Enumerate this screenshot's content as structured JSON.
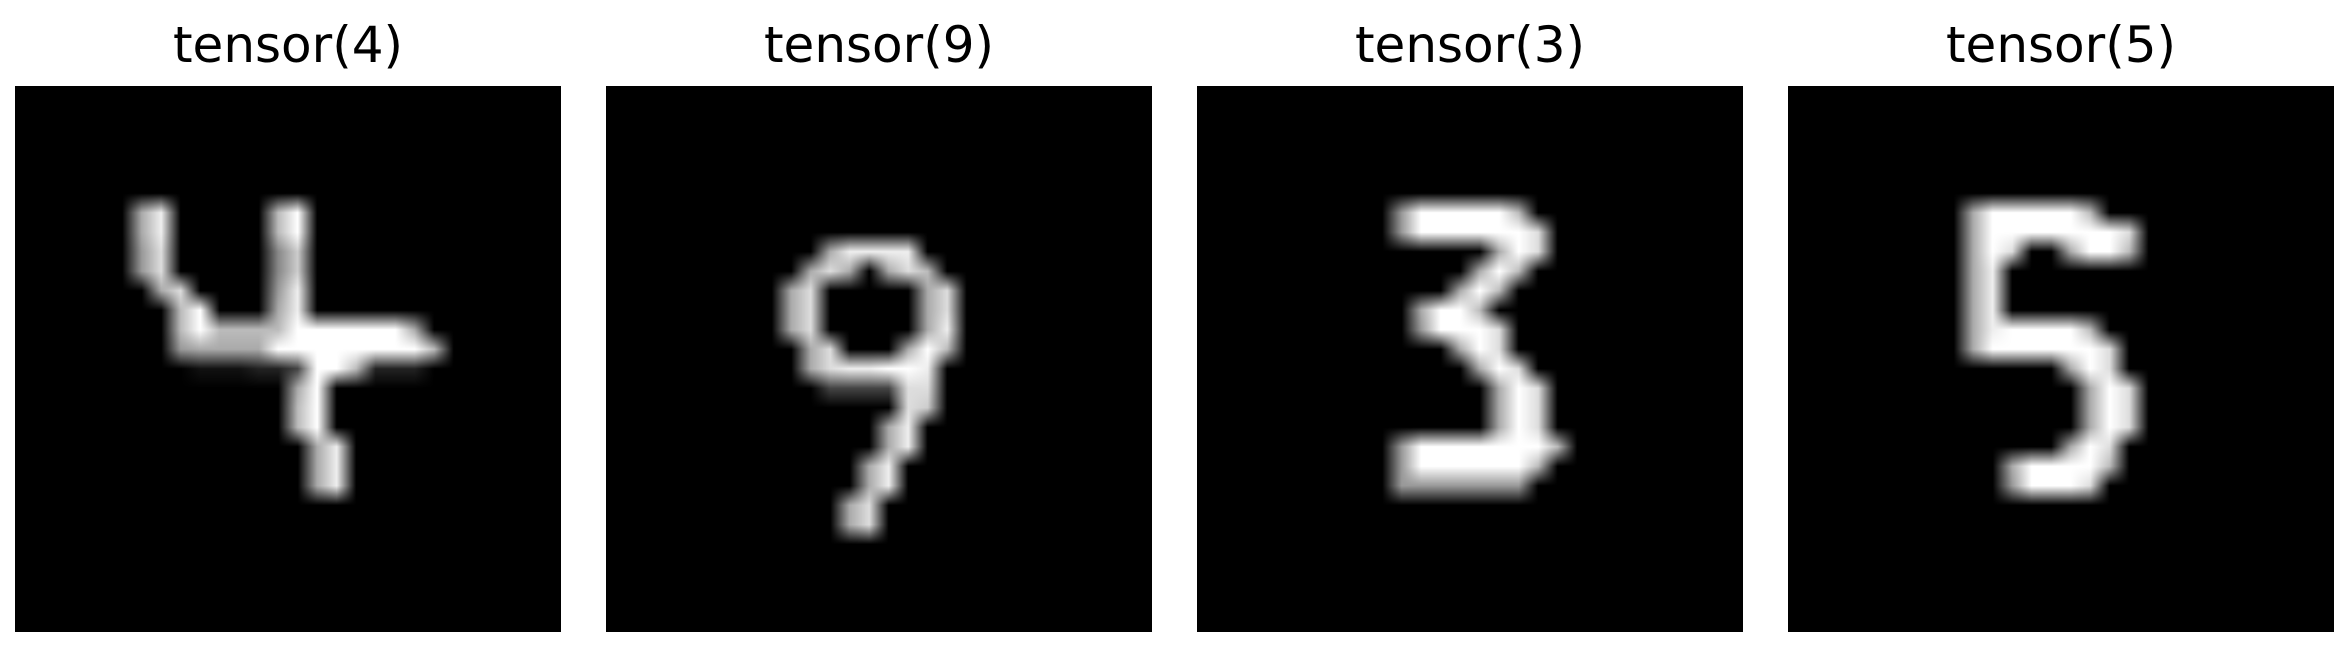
{
  "figure": {
    "panels": [
      {
        "title": "tensor(4)",
        "digit_pixels": [
          ".........................",
          ".........................",
          ".........................",
          ".........................",
          ".........................",
          ".........................",
          "......AE.....BF..........",
          "......AE.....BF..........",
          "......9D.....8C..........",
          "......9D.....8C..........",
          ".......AD....9E..........",
          "........BF...AE..........",
          "........BFBBBBFFFFFFA.....",
          "........9AAAAFFFFFFFFB....",
          ".........111224FFB222.....",
          "..............AF.........",
          "..............BF.........",
          "..............BF.........",
          "...............AE........",
          "...............AE........",
          "...............AE........",
          "........................."
        ]
      },
      {
        "title": "tensor(9)",
        "digit_pixels": [
          ".........................",
          ".........................",
          ".........................",
          ".........................",
          ".........................",
          ".........................",
          ".........................",
          ".........................",
          "...........AEEEE.........",
          "..........ADA.ADB........",
          ".........AD.....AD.......",
          ".........AD.....AD.......",
          ".........AD.....AE.......",
          "..........AD...AFB.......",
          "..........ADEEFFE........",
          "...........4444DD........",
          "...............DC........",
          "..............AE.........",
          "..............AE.........",
          ".............AE..........",
          ".............AE..........",
          "............AD...........",
          "............AD...........",
          "........................."
        ]
      },
      {
        "title": "tensor(3)",
        "digit_pixels": [
          ".........................",
          ".........................",
          ".........................",
          ".........................",
          ".........................",
          ".........................",
          "..........9FFFFFB........",
          "..........9FFFFFFD.......",
          "...............AFD.......",
          "..............AFB........",
          ".............AFB.........",
          "...........AFFB..........",
          "...........9FFFD.........",
          ".............AFD.........",
          "..............AFD........",
          "...............AFD.......",
          "...............AFD.......",
          "...............AFD.......",
          "..........9FFFFFFFB......",
          "..........9FFFFFFB.......",
          "..........9999999........",
          ".........................",
          "........................."
        ]
      },
      {
        "title": "tensor(5)",
        "digit_pixels": [
          ".........................",
          ".........................",
          ".........................",
          ".........................",
          ".........................",
          ".........................",
          ".........AFFFFFB.........",
          ".........AFFFFFFFD.......",
          ".........AFD..AFFB.......",
          ".........AE..............",
          ".........AE..............",
          ".........AE..............",
          ".........AEFFFFB.........",
          ".........AFFFFFFD........",
          "..............AFD........",
          "...............AFD.......",
          "...............AFD.......",
          "...............AFD.......",
          "..............AFD........",
          "...........AFFFFB........",
          "...........9FFFD.........",
          ".........................",
          "........................."
        ]
      }
    ]
  }
}
